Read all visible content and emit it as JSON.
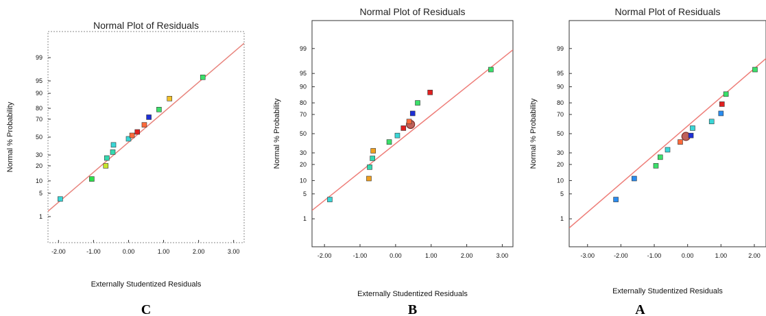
{
  "chart_data": [
    {
      "panel_label": "C",
      "type": "scatter",
      "title": "Normal Plot of Residuals",
      "xlabel": "Externally Studentized Residuals",
      "ylabel": "Normal % Probability",
      "x_ticks": [
        -2,
        -1,
        0,
        1,
        2,
        3
      ],
      "x_tick_labels": [
        "-2.00",
        "-1.00",
        "0.00",
        "1.00",
        "2.00",
        "3.00"
      ],
      "xlim": [
        -2.3,
        3.3
      ],
      "y_ticks": [
        1,
        5,
        10,
        20,
        30,
        50,
        70,
        80,
        90,
        95,
        99
      ],
      "y_tick_labels": [
        "1",
        "5",
        "10",
        "20",
        "30",
        "50",
        "70",
        "80",
        "90",
        "95",
        "99"
      ],
      "y_scale": "normal-probability",
      "ylim": [
        0.1,
        99.9
      ],
      "fit_line": {
        "x": [
          -2.3,
          3.3
        ],
        "y": [
          1.5,
          99.7
        ],
        "color": "#e8837c"
      },
      "grid": false,
      "border": "dashed",
      "points": [
        {
          "x": -1.95,
          "y": 3.5,
          "color": "#3ad6d6"
        },
        {
          "x": -1.05,
          "y": 11,
          "color": "#2fe04c"
        },
        {
          "x": -0.65,
          "y": 20,
          "color": "#c8e62e"
        },
        {
          "x": -0.62,
          "y": 27,
          "color": "#35d9b0"
        },
        {
          "x": -0.45,
          "y": 33,
          "color": "#35d9b0"
        },
        {
          "x": -0.43,
          "y": 41,
          "color": "#3ad6d6"
        },
        {
          "x": 0.0,
          "y": 48,
          "color": "#3ad6d6"
        },
        {
          "x": 0.1,
          "y": 52,
          "color": "#ff6a3a"
        },
        {
          "x": 0.25,
          "y": 56,
          "color": "#e02020"
        },
        {
          "x": 0.45,
          "y": 64,
          "color": "#ff6a3a"
        },
        {
          "x": 0.58,
          "y": 72,
          "color": "#1d2fd6"
        },
        {
          "x": 0.87,
          "y": 79,
          "color": "#3be06a"
        },
        {
          "x": 1.17,
          "y": 87,
          "color": "#f2c12a"
        },
        {
          "x": 2.12,
          "y": 96,
          "color": "#3be06a"
        }
      ],
      "highlight": []
    },
    {
      "panel_label": "B",
      "type": "scatter",
      "title": "Normal Plot of Residuals",
      "xlabel": "Externally Studentized Residuals",
      "ylabel": "Normal % Probability",
      "x_ticks": [
        -2,
        -1,
        0,
        1,
        2,
        3
      ],
      "x_tick_labels": [
        "-2.00",
        "-1.00",
        "0.00",
        "1.00",
        "2.00",
        "3.00"
      ],
      "xlim": [
        -2.35,
        3.3
      ],
      "y_ticks": [
        1,
        5,
        10,
        20,
        30,
        50,
        70,
        80,
        90,
        95,
        99
      ],
      "y_tick_labels": [
        "1",
        "5",
        "10",
        "20",
        "30",
        "50",
        "70",
        "80",
        "90",
        "95",
        "99"
      ],
      "y_scale": "normal-probability",
      "ylim": [
        0.1,
        99.9
      ],
      "fit_line": {
        "x": [
          -2.35,
          3.3
        ],
        "y": [
          1.8,
          98.9
        ],
        "color": "#ee7d78"
      },
      "grid": false,
      "border": "solid",
      "points": [
        {
          "x": -1.85,
          "y": 3.6,
          "color": "#3ad6d6"
        },
        {
          "x": -0.75,
          "y": 11,
          "color": "#f0a020"
        },
        {
          "x": -0.73,
          "y": 18,
          "color": "#35d9b0"
        },
        {
          "x": -0.65,
          "y": 25,
          "color": "#35d9b0"
        },
        {
          "x": -0.63,
          "y": 32,
          "color": "#f0a020"
        },
        {
          "x": -0.18,
          "y": 41,
          "color": "#3be06a"
        },
        {
          "x": 0.05,
          "y": 48,
          "color": "#3ad6d6"
        },
        {
          "x": 0.22,
          "y": 56,
          "color": "#e02020"
        },
        {
          "x": 0.38,
          "y": 63,
          "color": "#ff6a3a"
        },
        {
          "x": 0.48,
          "y": 71,
          "color": "#1d2fd6"
        },
        {
          "x": 0.62,
          "y": 80,
          "color": "#3be06a"
        },
        {
          "x": 0.97,
          "y": 87,
          "color": "#e02020"
        },
        {
          "x": 2.68,
          "y": 96,
          "color": "#3be06a"
        }
      ],
      "highlight": [
        {
          "x": 0.42,
          "y": 60
        }
      ]
    },
    {
      "panel_label": "A",
      "type": "scatter",
      "title": "Normal Plot of Residuals",
      "xlabel": "Externally Studentized Residuals",
      "ylabel": "Normal % Probability",
      "x_ticks": [
        -3,
        -2,
        -1,
        0,
        1,
        2
      ],
      "x_tick_labels": [
        "-3.00",
        "-2.00",
        "-1.00",
        "0.00",
        "1.00",
        "2.00"
      ],
      "xlim": [
        -3.55,
        2.35
      ],
      "y_ticks": [
        1,
        5,
        10,
        20,
        30,
        50,
        70,
        80,
        90,
        95,
        99
      ],
      "y_tick_labels": [
        "1",
        "5",
        "10",
        "20",
        "30",
        "50",
        "70",
        "80",
        "90",
        "95",
        "99"
      ],
      "y_scale": "normal-probability",
      "ylim": [
        0.1,
        99.9
      ],
      "fit_line": {
        "x": [
          -3.55,
          2.35
        ],
        "y": [
          0.5,
          98.0
        ],
        "color": "#ee7d78"
      },
      "grid": false,
      "border": "solid",
      "points": [
        {
          "x": -2.15,
          "y": 3.6,
          "color": "#2a8cf0"
        },
        {
          "x": -1.6,
          "y": 11,
          "color": "#2a8cf0"
        },
        {
          "x": -0.95,
          "y": 19,
          "color": "#3be06a"
        },
        {
          "x": -0.82,
          "y": 26,
          "color": "#3be06a"
        },
        {
          "x": -0.6,
          "y": 33,
          "color": "#3ad6d6"
        },
        {
          "x": -0.22,
          "y": 41,
          "color": "#ff6a3a"
        },
        {
          "x": 0.1,
          "y": 48,
          "color": "#1d2fd6"
        },
        {
          "x": 0.15,
          "y": 56,
          "color": "#3ad6d6"
        },
        {
          "x": 0.72,
          "y": 63,
          "color": "#3ad6d6"
        },
        {
          "x": 1.0,
          "y": 71,
          "color": "#2a8cf0"
        },
        {
          "x": 1.03,
          "y": 79,
          "color": "#e02020"
        },
        {
          "x": 1.15,
          "y": 86,
          "color": "#3be06a"
        },
        {
          "x": 2.02,
          "y": 96,
          "color": "#3be06a"
        }
      ],
      "highlight": [
        {
          "x": -0.05,
          "y": 47
        }
      ]
    }
  ]
}
